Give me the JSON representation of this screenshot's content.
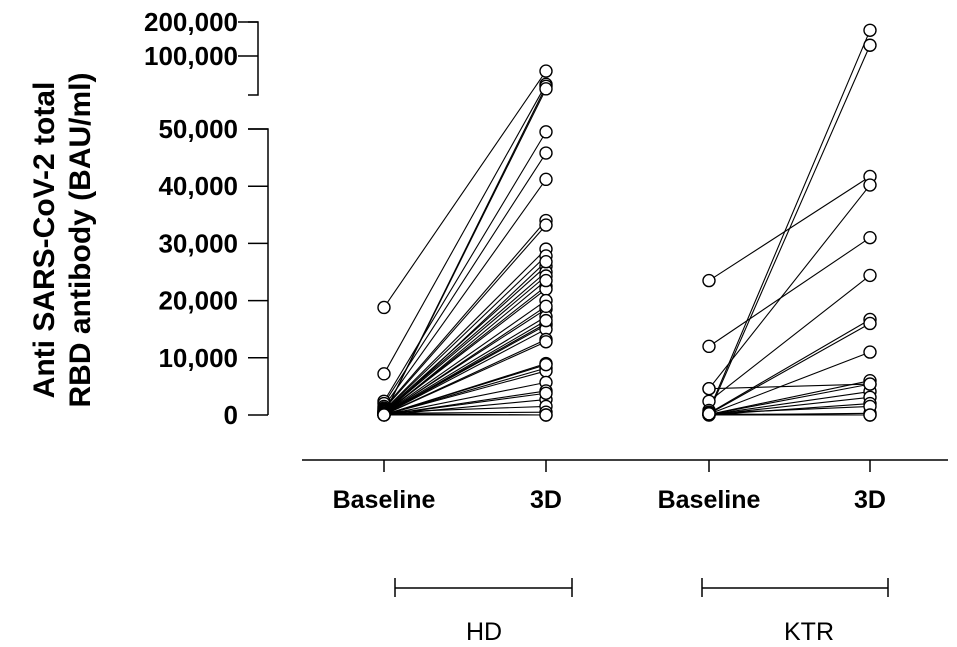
{
  "chart_data": {
    "type": "scatter",
    "title": "",
    "ylabel_lines": [
      "Anti SARS-CoV-2  total",
      "RBD antibody (BAU/ml)"
    ],
    "xlabel": "",
    "y_axis": {
      "lower_segment": {
        "range": [
          0,
          50000
        ],
        "ticks": [
          0,
          10000,
          20000,
          30000,
          40000,
          50000
        ],
        "tick_labels": [
          "0",
          "10,000",
          "20,000",
          "30,000",
          "40,000",
          "50,000"
        ]
      },
      "upper_segment": {
        "range": [
          60000,
          200000
        ],
        "ticks": [
          100000,
          200000
        ],
        "tick_labels": [
          "100,000",
          "200,000"
        ]
      },
      "broken_axis": true
    },
    "categories": [
      "Baseline",
      "3D",
      "Baseline",
      "3D"
    ],
    "groups": [
      {
        "name": "HD",
        "categories": [
          "Baseline",
          "3D"
        ]
      },
      {
        "name": "KTR",
        "categories": [
          "Baseline",
          "3D"
        ]
      }
    ],
    "series": [
      {
        "name": "HD",
        "baseline": [
          18800,
          7200,
          2400,
          2000,
          1500,
          1200,
          1000,
          800,
          700,
          600,
          500,
          400,
          300,
          250,
          200,
          150,
          120,
          100,
          100,
          80,
          60,
          50,
          40,
          30,
          20,
          10,
          10,
          5,
          500,
          300,
          200,
          150,
          100,
          80,
          60,
          50,
          40,
          30,
          20,
          10
        ],
        "dose3": [
          75000,
          63000,
          49500,
          45800,
          41200,
          34000,
          33200,
          29000,
          27800,
          26000,
          25000,
          24300,
          22500,
          22000,
          20000,
          18500,
          17200,
          16000,
          15700,
          15000,
          13200,
          12800,
          9000,
          8200,
          7700,
          5700,
          4200,
          2700,
          1500,
          500,
          0,
          62000,
          61000,
          26800,
          23500,
          19000,
          16500,
          8800,
          3800,
          0
        ]
      },
      {
        "name": "KTR",
        "baseline": [
          23500,
          12000,
          4600,
          2400,
          800,
          500,
          300,
          200,
          150,
          100,
          80,
          60,
          40,
          20,
          10,
          5,
          4600,
          300,
          200
        ],
        "dose3": [
          41700,
          31000,
          40200,
          24400,
          170000,
          125000,
          16700,
          16000,
          11000,
          6000,
          5400,
          4100,
          3100,
          2000,
          300,
          0,
          5400,
          1500,
          0
        ]
      }
    ],
    "x_labels": [
      "Baseline",
      "3D",
      "Baseline",
      "3D"
    ],
    "group_labels": [
      "HD",
      "KTR"
    ],
    "marker": "open-circle",
    "grid": false,
    "legend": "none"
  }
}
